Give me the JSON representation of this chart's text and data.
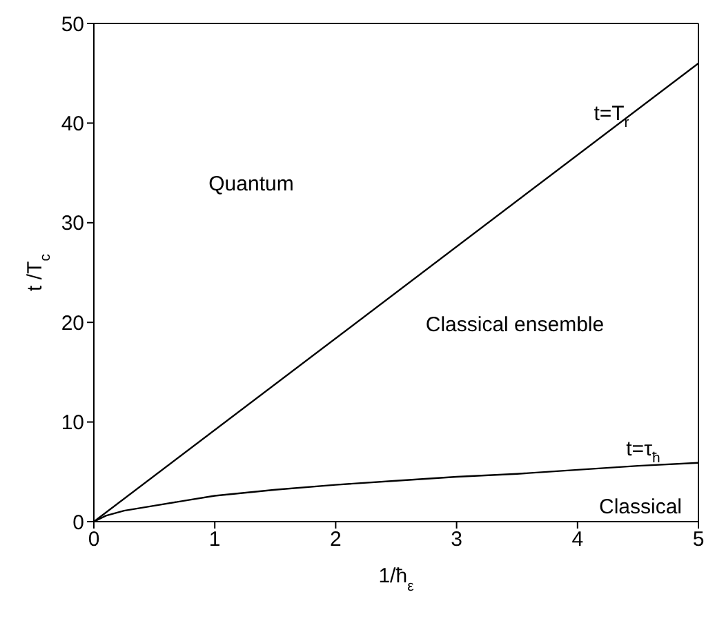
{
  "chart_data": {
    "type": "line",
    "xlabel": "1/ħ$_{ε}$",
    "ylabel": "t /T$_{c}$",
    "xlim": [
      0,
      5
    ],
    "xticks": [
      0,
      1,
      2,
      3,
      4,
      5
    ],
    "ylim": [
      0,
      50
    ],
    "yticks": [
      0,
      10,
      20,
      30,
      40,
      50
    ],
    "legend": false,
    "marker": "none",
    "line_style": "solid",
    "series": [
      {
        "color": "#000000",
        "x": [
          0,
          5
        ],
        "values": [
          0,
          46
        ]
      },
      {
        "color": "#000000",
        "x": [
          0,
          0.1,
          0.25,
          0.5,
          0.75,
          1,
          1.5,
          2,
          2.5,
          3,
          3.5,
          4,
          4.5,
          5
        ],
        "values": [
          0,
          0.6,
          1.1,
          1.6,
          2.1,
          2.6,
          3.2,
          3.7,
          4.1,
          4.5,
          4.8,
          5.2,
          5.6,
          5.9
        ]
      }
    ],
    "annotations": [
      "t=T$_{r}$",
      "Quantum",
      "Classical ensemble",
      "t=τ$_{ħ}$",
      "Classical"
    ]
  }
}
